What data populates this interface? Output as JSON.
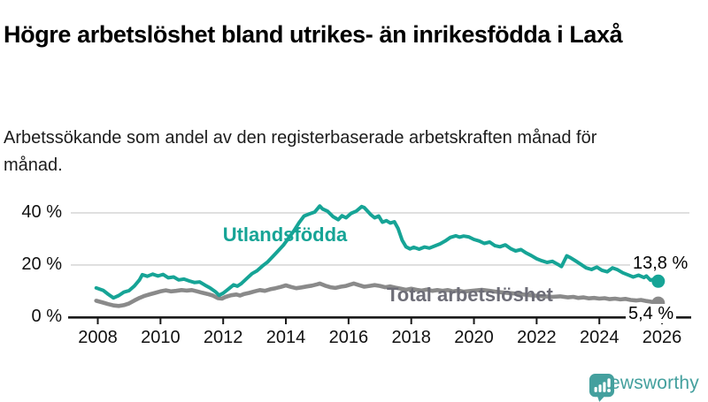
{
  "header": {
    "title": "Högre arbetslöshet bland utrikes- än inrikesfödda i Laxå",
    "subtitle": "Arbetssökande som andel av den registerbaserade arbetskraften månad för månad."
  },
  "chart_data": {
    "type": "line",
    "title": "Högre arbetslöshet bland utrikes- än inrikesfödda i Laxå",
    "subtitle": "Arbetssökande som andel av den registerbaserade arbetskraften månad för månad.",
    "unit": "%",
    "grid": "horizontal-only",
    "legend_position": "inline-labels",
    "x_axis": {
      "ticks": [
        2008,
        2010,
        2012,
        2014,
        2016,
        2018,
        2020,
        2022,
        2024,
        2026
      ],
      "range": [
        2007.2,
        2026.8
      ]
    },
    "y_axis": {
      "ticks": [
        {
          "value": 0,
          "label": "0 %"
        },
        {
          "value": 20,
          "label": "20 %"
        },
        {
          "value": 40,
          "label": "40 %"
        }
      ],
      "gridlines": [
        20,
        40
      ],
      "range": [
        0,
        46
      ]
    },
    "style": {
      "grid_color": "#D8D8D8",
      "axis_color": "#1A1A1A"
    },
    "series": [
      {
        "name": "Utlandsfödda",
        "color": "#16A496",
        "label_color": "#16A496",
        "end_value": 13.8,
        "end_label": "13,8 %",
        "points": [
          [
            2007.95,
            11.2
          ],
          [
            2008.17,
            10.3
          ],
          [
            2008.33,
            8.8
          ],
          [
            2008.5,
            7.4
          ],
          [
            2008.67,
            8.3
          ],
          [
            2008.83,
            9.6
          ],
          [
            2009.0,
            10.2
          ],
          [
            2009.17,
            12.0
          ],
          [
            2009.33,
            14.3
          ],
          [
            2009.42,
            16.3
          ],
          [
            2009.58,
            15.7
          ],
          [
            2009.75,
            16.5
          ],
          [
            2009.92,
            15.8
          ],
          [
            2010.08,
            16.4
          ],
          [
            2010.25,
            15.1
          ],
          [
            2010.42,
            15.4
          ],
          [
            2010.58,
            14.3
          ],
          [
            2010.75,
            14.6
          ],
          [
            2010.92,
            13.9
          ],
          [
            2011.08,
            13.3
          ],
          [
            2011.25,
            13.5
          ],
          [
            2011.42,
            12.3
          ],
          [
            2011.58,
            11.2
          ],
          [
            2011.75,
            9.8
          ],
          [
            2011.87,
            8.4
          ],
          [
            2012.0,
            9.2
          ],
          [
            2012.17,
            10.8
          ],
          [
            2012.33,
            12.4
          ],
          [
            2012.45,
            11.9
          ],
          [
            2012.58,
            12.9
          ],
          [
            2012.75,
            14.8
          ],
          [
            2012.92,
            16.7
          ],
          [
            2013.08,
            17.8
          ],
          [
            2013.25,
            19.6
          ],
          [
            2013.42,
            21.2
          ],
          [
            2013.58,
            23.2
          ],
          [
            2013.75,
            25.4
          ],
          [
            2013.92,
            27.6
          ],
          [
            2014.08,
            30.2
          ],
          [
            2014.25,
            33.0
          ],
          [
            2014.42,
            36.2
          ],
          [
            2014.58,
            38.8
          ],
          [
            2014.75,
            39.6
          ],
          [
            2014.92,
            40.3
          ],
          [
            2015.08,
            42.6
          ],
          [
            2015.17,
            41.5
          ],
          [
            2015.33,
            40.6
          ],
          [
            2015.5,
            38.6
          ],
          [
            2015.67,
            37.4
          ],
          [
            2015.79,
            38.9
          ],
          [
            2015.92,
            38.1
          ],
          [
            2016.08,
            39.8
          ],
          [
            2016.25,
            40.7
          ],
          [
            2016.42,
            42.4
          ],
          [
            2016.5,
            42.0
          ],
          [
            2016.58,
            41.0
          ],
          [
            2016.71,
            39.3
          ],
          [
            2016.83,
            38.1
          ],
          [
            2016.96,
            38.8
          ],
          [
            2017.08,
            36.4
          ],
          [
            2017.21,
            37.0
          ],
          [
            2017.33,
            36.1
          ],
          [
            2017.46,
            36.6
          ],
          [
            2017.58,
            34.0
          ],
          [
            2017.71,
            29.5
          ],
          [
            2017.83,
            27.0
          ],
          [
            2017.96,
            26.2
          ],
          [
            2018.08,
            26.8
          ],
          [
            2018.25,
            26.1
          ],
          [
            2018.42,
            26.9
          ],
          [
            2018.58,
            26.5
          ],
          [
            2018.75,
            27.3
          ],
          [
            2018.92,
            28.1
          ],
          [
            2019.08,
            29.2
          ],
          [
            2019.25,
            30.6
          ],
          [
            2019.42,
            31.2
          ],
          [
            2019.54,
            30.7
          ],
          [
            2019.67,
            31.1
          ],
          [
            2019.83,
            30.8
          ],
          [
            2020.0,
            29.8
          ],
          [
            2020.17,
            29.2
          ],
          [
            2020.33,
            28.3
          ],
          [
            2020.5,
            28.8
          ],
          [
            2020.67,
            27.4
          ],
          [
            2020.83,
            27.0
          ],
          [
            2021.0,
            27.7
          ],
          [
            2021.17,
            26.3
          ],
          [
            2021.33,
            25.4
          ],
          [
            2021.5,
            25.9
          ],
          [
            2021.67,
            24.6
          ],
          [
            2021.83,
            23.6
          ],
          [
            2022.0,
            22.4
          ],
          [
            2022.17,
            21.6
          ],
          [
            2022.33,
            21.0
          ],
          [
            2022.5,
            21.4
          ],
          [
            2022.67,
            20.3
          ],
          [
            2022.79,
            19.4
          ],
          [
            2022.96,
            23.5
          ],
          [
            2023.08,
            22.8
          ],
          [
            2023.25,
            21.5
          ],
          [
            2023.42,
            20.2
          ],
          [
            2023.58,
            18.9
          ],
          [
            2023.75,
            18.3
          ],
          [
            2023.92,
            19.2
          ],
          [
            2024.08,
            18.0
          ],
          [
            2024.25,
            17.4
          ],
          [
            2024.42,
            18.9
          ],
          [
            2024.58,
            18.2
          ],
          [
            2024.75,
            17.0
          ],
          [
            2024.92,
            16.2
          ],
          [
            2025.08,
            15.4
          ],
          [
            2025.25,
            16.1
          ],
          [
            2025.42,
            15.2
          ],
          [
            2025.5,
            15.8
          ],
          [
            2025.63,
            14.2
          ],
          [
            2025.75,
            14.6
          ],
          [
            2025.88,
            13.8
          ]
        ]
      },
      {
        "name": "Total arbetslöshet",
        "color": "#8A8A8A",
        "label_color": "#6E6E78",
        "end_value": 5.4,
        "end_label": "5,4 %",
        "points": [
          [
            2007.95,
            6.3
          ],
          [
            2008.17,
            5.6
          ],
          [
            2008.33,
            5.0
          ],
          [
            2008.5,
            4.5
          ],
          [
            2008.67,
            4.3
          ],
          [
            2008.83,
            4.6
          ],
          [
            2009.0,
            5.3
          ],
          [
            2009.17,
            6.4
          ],
          [
            2009.33,
            7.4
          ],
          [
            2009.5,
            8.2
          ],
          [
            2009.67,
            8.8
          ],
          [
            2009.83,
            9.3
          ],
          [
            2010.0,
            9.9
          ],
          [
            2010.17,
            10.3
          ],
          [
            2010.33,
            9.9
          ],
          [
            2010.5,
            10.1
          ],
          [
            2010.67,
            10.4
          ],
          [
            2010.83,
            10.2
          ],
          [
            2011.0,
            10.4
          ],
          [
            2011.17,
            9.9
          ],
          [
            2011.33,
            9.4
          ],
          [
            2011.5,
            8.9
          ],
          [
            2011.67,
            8.3
          ],
          [
            2011.83,
            7.3
          ],
          [
            2011.96,
            7.1
          ],
          [
            2012.08,
            7.8
          ],
          [
            2012.25,
            8.4
          ],
          [
            2012.42,
            8.7
          ],
          [
            2012.54,
            8.3
          ],
          [
            2012.67,
            8.9
          ],
          [
            2012.83,
            9.3
          ],
          [
            2013.0,
            9.9
          ],
          [
            2013.17,
            10.4
          ],
          [
            2013.33,
            10.1
          ],
          [
            2013.5,
            10.7
          ],
          [
            2013.67,
            11.1
          ],
          [
            2013.83,
            11.6
          ],
          [
            2014.0,
            12.2
          ],
          [
            2014.17,
            11.6
          ],
          [
            2014.33,
            11.1
          ],
          [
            2014.5,
            11.4
          ],
          [
            2014.67,
            11.8
          ],
          [
            2014.83,
            12.1
          ],
          [
            2015.0,
            12.6
          ],
          [
            2015.08,
            12.9
          ],
          [
            2015.25,
            12.1
          ],
          [
            2015.42,
            11.5
          ],
          [
            2015.58,
            11.2
          ],
          [
            2015.75,
            11.7
          ],
          [
            2015.92,
            12.0
          ],
          [
            2016.08,
            12.6
          ],
          [
            2016.17,
            12.9
          ],
          [
            2016.33,
            12.3
          ],
          [
            2016.5,
            11.7
          ],
          [
            2016.67,
            12.0
          ],
          [
            2016.83,
            12.3
          ],
          [
            2017.0,
            12.0
          ],
          [
            2017.17,
            11.5
          ],
          [
            2017.33,
            11.8
          ],
          [
            2017.5,
            11.3
          ],
          [
            2017.67,
            10.9
          ],
          [
            2017.83,
            10.5
          ],
          [
            2018.0,
            10.9
          ],
          [
            2018.17,
            10.5
          ],
          [
            2018.33,
            10.2
          ],
          [
            2018.5,
            10.6
          ],
          [
            2018.67,
            10.1
          ],
          [
            2018.83,
            10.4
          ],
          [
            2019.0,
            10.1
          ],
          [
            2019.17,
            10.4
          ],
          [
            2019.33,
            9.9
          ],
          [
            2019.5,
            10.2
          ],
          [
            2019.67,
            9.8
          ],
          [
            2019.83,
            10.0
          ],
          [
            2020.0,
            10.2
          ],
          [
            2020.25,
            10.5
          ],
          [
            2020.5,
            10.1
          ],
          [
            2020.75,
            9.7
          ],
          [
            2021.0,
            9.4
          ],
          [
            2021.25,
            9.1
          ],
          [
            2021.5,
            8.8
          ],
          [
            2021.75,
            8.5
          ],
          [
            2022.0,
            8.2
          ],
          [
            2022.25,
            8.0
          ],
          [
            2022.5,
            7.8
          ],
          [
            2022.75,
            8.0
          ],
          [
            2023.0,
            7.6
          ],
          [
            2023.17,
            7.8
          ],
          [
            2023.33,
            7.4
          ],
          [
            2023.5,
            7.6
          ],
          [
            2023.67,
            7.2
          ],
          [
            2023.83,
            7.4
          ],
          [
            2024.0,
            7.1
          ],
          [
            2024.17,
            7.3
          ],
          [
            2024.33,
            6.9
          ],
          [
            2024.5,
            7.1
          ],
          [
            2024.67,
            6.8
          ],
          [
            2024.83,
            7.0
          ],
          [
            2025.0,
            6.6
          ],
          [
            2025.17,
            6.4
          ],
          [
            2025.33,
            6.6
          ],
          [
            2025.5,
            6.2
          ],
          [
            2025.67,
            5.9
          ],
          [
            2025.88,
            5.4
          ]
        ]
      }
    ]
  },
  "footer": {
    "brand": "Newsworthy",
    "brand_color": "#44A09E",
    "logo_icon": "bar-chart-speech-bubble"
  }
}
